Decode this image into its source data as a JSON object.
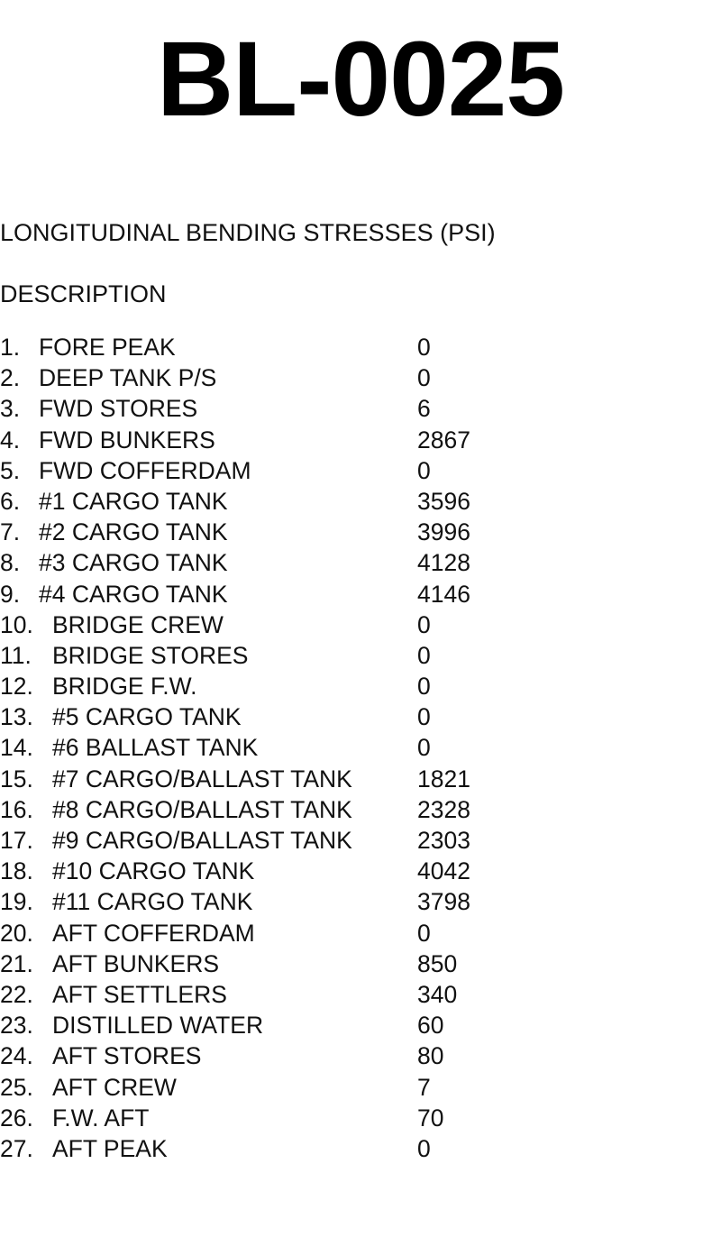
{
  "title": "BL-0025",
  "heading": "LONGITUDINAL BENDING STRESSES (PSI)",
  "column_header": "DESCRIPTION",
  "rows": [
    {
      "num": "1.",
      "name": "FORE PEAK",
      "value": "0"
    },
    {
      "num": "2.",
      "name": "DEEP TANK P/S",
      "value": "0"
    },
    {
      "num": "3.",
      "name": "FWD STORES",
      "value": "6"
    },
    {
      "num": "4.",
      "name": "FWD BUNKERS",
      "value": "2867"
    },
    {
      "num": "5.",
      "name": "FWD COFFERDAM",
      "value": "0"
    },
    {
      "num": "6.",
      "name": "#1 CARGO TANK",
      "value": "3596"
    },
    {
      "num": "7.",
      "name": "#2 CARGO TANK",
      "value": "3996"
    },
    {
      "num": "8.",
      "name": "#3 CARGO TANK",
      "value": "4128"
    },
    {
      "num": "9.",
      "name": "#4 CARGO TANK",
      "value": "4146"
    },
    {
      "num": "10.",
      "name": "BRIDGE CREW",
      "value": "0"
    },
    {
      "num": "11.",
      "name": "BRIDGE STORES",
      "value": "0"
    },
    {
      "num": "12.",
      "name": "BRIDGE F.W.",
      "value": "0"
    },
    {
      "num": "13.",
      "name": "#5 CARGO TANK",
      "value": "0"
    },
    {
      "num": "14.",
      "name": "#6 BALLAST TANK",
      "value": "0"
    },
    {
      "num": "15.",
      "name": "#7 CARGO/BALLAST TANK",
      "value": "1821"
    },
    {
      "num": "16.",
      "name": "#8 CARGO/BALLAST TANK",
      "value": "2328"
    },
    {
      "num": "17.",
      "name": "#9 CARGO/BALLAST TANK",
      "value": "2303"
    },
    {
      "num": "18.",
      "name": "#10 CARGO TANK",
      "value": "4042"
    },
    {
      "num": "19.",
      "name": "#11 CARGO TANK",
      "value": "3798"
    },
    {
      "num": "20.",
      "name": "AFT COFFERDAM",
      "value": "0"
    },
    {
      "num": "21.",
      "name": "AFT BUNKERS",
      "value": "850"
    },
    {
      "num": "22.",
      "name": "AFT SETTLERS",
      "value": "340"
    },
    {
      "num": "23.",
      "name": "DISTILLED WATER",
      "value": "60"
    },
    {
      "num": "24.",
      "name": "AFT STORES",
      "value": "80"
    },
    {
      "num": "25.",
      "name": "AFT CREW",
      "value": "7"
    },
    {
      "num": "26.",
      "name": "F.W. AFT",
      "value": "70"
    },
    {
      "num": "27.",
      "name": "AFT PEAK",
      "value": "0"
    }
  ]
}
